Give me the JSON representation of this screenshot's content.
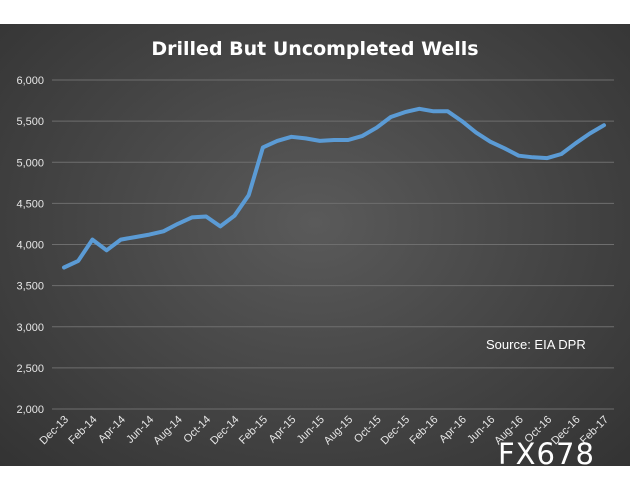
{
  "chart_data": {
    "type": "line",
    "title": "Drilled But Uncompleted Wells",
    "xlabel": "",
    "ylabel": "",
    "ylim": [
      2000,
      6000
    ],
    "yticks": [
      2000,
      2500,
      3000,
      3500,
      4000,
      4500,
      5000,
      5500,
      6000
    ],
    "ytick_labels": [
      "2,000",
      "2,500",
      "3,000",
      "3,500",
      "4,000",
      "4,500",
      "5,000",
      "5,500",
      "6,000"
    ],
    "x_tick_labels": [
      "Dec-13",
      "Feb-14",
      "Apr-14",
      "Jun-14",
      "Aug-14",
      "Oct-14",
      "Dec-14",
      "Feb-15",
      "Apr-15",
      "Jun-15",
      "Aug-15",
      "Oct-15",
      "Dec-15",
      "Feb-16",
      "Apr-16",
      "Jun-16",
      "Aug-16",
      "Oct-16",
      "Dec-16",
      "Feb-17"
    ],
    "x": [
      "Dec-13",
      "Jan-14",
      "Feb-14",
      "Mar-14",
      "Apr-14",
      "May-14",
      "Jun-14",
      "Jul-14",
      "Aug-14",
      "Sep-14",
      "Oct-14",
      "Nov-14",
      "Dec-14",
      "Jan-15",
      "Feb-15",
      "Mar-15",
      "Apr-15",
      "May-15",
      "Jun-15",
      "Jul-15",
      "Aug-15",
      "Sep-15",
      "Oct-15",
      "Nov-15",
      "Dec-15",
      "Jan-16",
      "Feb-16",
      "Mar-16",
      "Apr-16",
      "May-16",
      "Jun-16",
      "Jul-16",
      "Aug-16",
      "Sep-16",
      "Oct-16",
      "Nov-16",
      "Dec-16",
      "Jan-17",
      "Feb-17"
    ],
    "series": [
      {
        "values": [
          3720,
          3800,
          4060,
          3930,
          4060,
          4090,
          4120,
          4160,
          4250,
          4330,
          4340,
          4220,
          4350,
          4600,
          5180,
          5260,
          5310,
          5290,
          5260,
          5270,
          5270,
          5320,
          5420,
          5550,
          5610,
          5650,
          5620,
          5620,
          5500,
          5360,
          5250,
          5170,
          5080,
          5060,
          5050,
          5100,
          5230,
          5350,
          5450
        ]
      }
    ],
    "grid": true,
    "legend": "none",
    "annotation": "Source: EIA DPR",
    "line_color": "#5b9bd5"
  },
  "watermark": "FX678"
}
